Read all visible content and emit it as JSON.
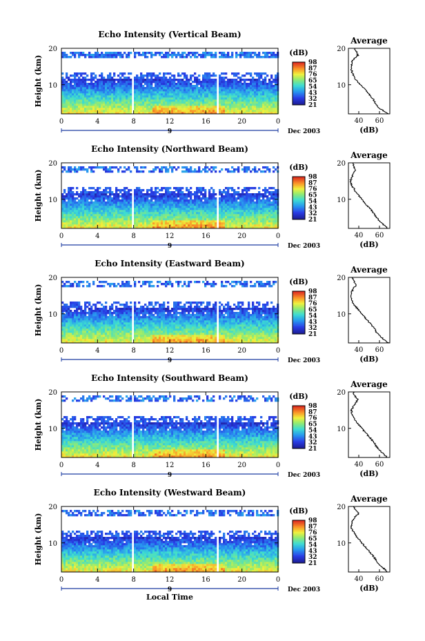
{
  "chart_data": [
    {
      "type": "heatmap",
      "title": "Echo Intensity (Vertical Beam)",
      "ylabel": "Height (km)",
      "xlim": [
        0,
        24
      ],
      "ylim": [
        2,
        20
      ],
      "x_ticks": [
        "0",
        "4",
        "8",
        "12",
        "16",
        "20",
        "0"
      ],
      "y_ticks": [
        "10",
        "20"
      ],
      "date_marks": [
        "9",
        "Dec 2003"
      ],
      "colorbar": {
        "unit": "(dB)",
        "levels": [
          "98",
          "87",
          "76",
          "65",
          "54",
          "43",
          "32",
          "21"
        ]
      },
      "profile": {
        "title": "Average",
        "xlabel": "(dB)",
        "x_ticks": [
          "40",
          "60"
        ],
        "xlim": [
          30,
          70
        ],
        "height": [
          2,
          3,
          4,
          5,
          6,
          7,
          8,
          9,
          10,
          11,
          12,
          13,
          14,
          15,
          16,
          17,
          18,
          19,
          20
        ],
        "db": [
          69,
          63,
          58,
          56,
          54,
          51,
          48,
          45,
          42,
          38,
          36,
          34,
          33,
          33,
          33,
          35,
          39,
          38,
          36
        ]
      }
    },
    {
      "type": "heatmap",
      "title": "Echo Intensity (Northward Beam)",
      "ylabel": "Height (km)",
      "xlim": [
        0,
        24
      ],
      "ylim": [
        2,
        20
      ],
      "x_ticks": [
        "0",
        "4",
        "8",
        "12",
        "16",
        "20",
        "0"
      ],
      "y_ticks": [
        "10",
        "20"
      ],
      "date_marks": [
        "9",
        "Dec 2003"
      ],
      "colorbar": {
        "unit": "(dB)",
        "levels": [
          "98",
          "87",
          "76",
          "65",
          "54",
          "43",
          "32",
          "21"
        ]
      },
      "profile": {
        "title": "Average",
        "xlabel": "(dB)",
        "x_ticks": [
          "40",
          "60"
        ],
        "xlim": [
          30,
          70
        ],
        "height": [
          2,
          3,
          4,
          5,
          6,
          7,
          8,
          9,
          10,
          11,
          12,
          13,
          14,
          15,
          16,
          17,
          18,
          19,
          20
        ],
        "db": [
          68,
          64,
          60,
          57,
          55,
          52,
          49,
          46,
          43,
          40,
          37,
          35,
          33,
          32,
          33,
          35,
          37,
          35,
          34
        ]
      }
    },
    {
      "type": "heatmap",
      "title": "Echo Intensity (Eastward Beam)",
      "ylabel": "Height (km)",
      "xlim": [
        0,
        24
      ],
      "ylim": [
        2,
        20
      ],
      "x_ticks": [
        "0",
        "4",
        "8",
        "12",
        "16",
        "20",
        "0"
      ],
      "y_ticks": [
        "10",
        "20"
      ],
      "date_marks": [
        "9",
        "Dec 2003"
      ],
      "colorbar": {
        "unit": "(dB)",
        "levels": [
          "98",
          "87",
          "76",
          "65",
          "54",
          "43",
          "32",
          "21"
        ]
      },
      "profile": {
        "title": "Average",
        "xlabel": "(dB)",
        "x_ticks": [
          "40",
          "60"
        ],
        "xlim": [
          30,
          70
        ],
        "height": [
          2,
          3,
          4,
          5,
          6,
          7,
          8,
          9,
          10,
          11,
          12,
          13,
          14,
          15,
          16,
          17,
          18,
          19,
          20
        ],
        "db": [
          69,
          64,
          60,
          57,
          55,
          52,
          49,
          46,
          43,
          40,
          37,
          34,
          33,
          32,
          33,
          35,
          38,
          35,
          34
        ]
      }
    },
    {
      "type": "heatmap",
      "title": "Echo Intensity (Southward Beam)",
      "ylabel": "Height (km)",
      "xlim": [
        0,
        24
      ],
      "ylim": [
        2,
        20
      ],
      "x_ticks": [
        "0",
        "4",
        "8",
        "12",
        "16",
        "20",
        "0"
      ],
      "y_ticks": [
        "10",
        "20"
      ],
      "date_marks": [
        "9",
        "Dec 2003"
      ],
      "colorbar": {
        "unit": "(dB)",
        "levels": [
          "98",
          "87",
          "76",
          "65",
          "54",
          "43",
          "32",
          "21"
        ]
      },
      "profile": {
        "title": "Average",
        "xlabel": "(dB)",
        "x_ticks": [
          "40",
          "60"
        ],
        "xlim": [
          30,
          70
        ],
        "height": [
          2,
          3,
          4,
          5,
          6,
          7,
          8,
          9,
          10,
          11,
          12,
          13,
          14,
          15,
          16,
          17,
          18,
          19,
          20
        ],
        "db": [
          68,
          64,
          60,
          57,
          55,
          52,
          49,
          46,
          43,
          40,
          37,
          35,
          33,
          33,
          35,
          37,
          39,
          36,
          35
        ]
      }
    },
    {
      "type": "heatmap",
      "title": "Echo Intensity (Westward Beam)",
      "ylabel": "Height (km)",
      "xlim": [
        0,
        24
      ],
      "ylim": [
        2,
        20
      ],
      "x_ticks": [
        "0",
        "4",
        "8",
        "12",
        "16",
        "20",
        "0"
      ],
      "y_ticks": [
        "10",
        "20"
      ],
      "date_marks": [
        "9",
        "Dec 2003"
      ],
      "xlabel": "Local Time",
      "colorbar": {
        "unit": "(dB)",
        "levels": [
          "98",
          "87",
          "76",
          "65",
          "54",
          "43",
          "32",
          "21"
        ]
      },
      "profile": {
        "title": "Average",
        "xlabel": "(dB)",
        "x_ticks": [
          "40",
          "60"
        ],
        "xlim": [
          30,
          70
        ],
        "height": [
          2,
          3,
          4,
          5,
          6,
          7,
          8,
          9,
          10,
          11,
          12,
          13,
          14,
          15,
          16,
          17,
          18,
          19,
          20
        ],
        "db": [
          68,
          64,
          60,
          57,
          55,
          52,
          49,
          46,
          43,
          40,
          37,
          35,
          33,
          33,
          34,
          36,
          40,
          37,
          35
        ]
      }
    }
  ]
}
